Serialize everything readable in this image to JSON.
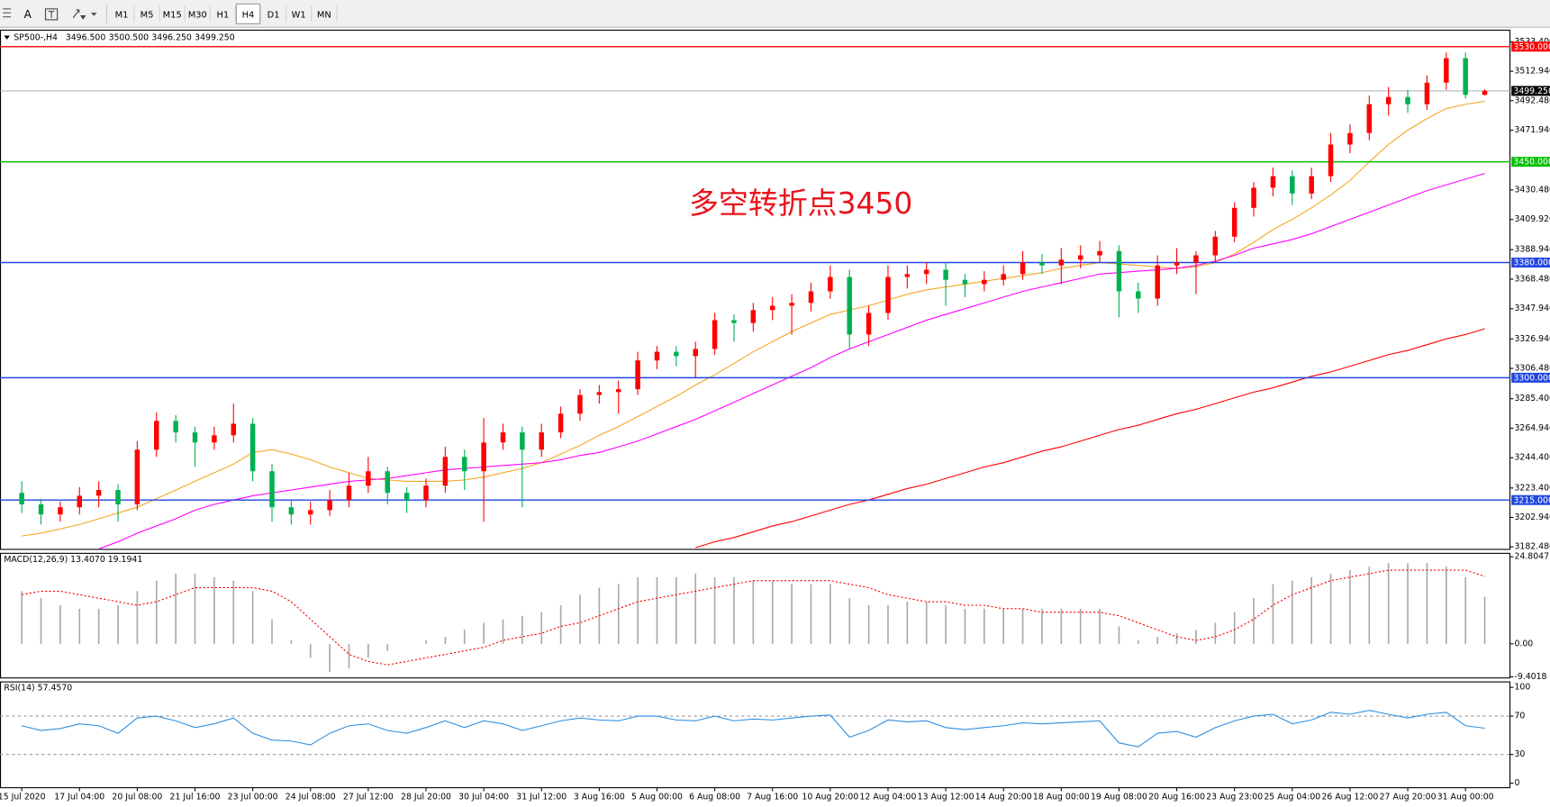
{
  "toolbar": {
    "text_tool": "A",
    "timeframes": [
      "M1",
      "M5",
      "M15",
      "M30",
      "H1",
      "H4",
      "D1",
      "W1",
      "MN"
    ],
    "active_timeframe": "H4"
  },
  "chart_data": [
    {
      "type": "candlestick",
      "title": "SP500-,H4",
      "ohlc_labels": [
        "3496.500",
        "3500.500",
        "3496.250",
        "3499.250"
      ],
      "annotation": "多空转折点3450",
      "categories": [
        "15 Jul 2020",
        null,
        null,
        "17 Jul 04:00",
        null,
        null,
        "20 Jul 08:00",
        null,
        null,
        "21 Jul 16:00",
        null,
        null,
        "23 Jul 00:00",
        null,
        null,
        "24 Jul 08:00",
        null,
        null,
        "27 Jul 12:00",
        null,
        null,
        "28 Jul 20:00",
        null,
        null,
        "30 Jul 04:00",
        null,
        null,
        "31 Jul 12:00",
        null,
        null,
        "3 Aug 16:00",
        null,
        null,
        "5 Aug 00:00",
        null,
        null,
        "6 Aug 08:00",
        null,
        null,
        "7 Aug 16:00",
        null,
        null,
        "10 Aug 20:00",
        null,
        null,
        "12 Aug 04:00",
        null,
        null,
        "13 Aug 12:00",
        null,
        null,
        "14 Aug 20:00",
        null,
        null,
        "18 Aug 00:00",
        null,
        null,
        "19 Aug 08:00",
        null,
        null,
        "20 Aug 16:00",
        null,
        null,
        "23 Aug 23:00",
        null,
        null,
        "25 Aug 04:00",
        null,
        null,
        "26 Aug 12:00",
        null,
        null,
        "27 Aug 20:00",
        null,
        null,
        "31 Aug 00:00",
        null
      ],
      "open": [
        3220,
        3212,
        3205,
        3210,
        3218,
        3222,
        3212,
        3250,
        3270,
        3262,
        3255,
        3260,
        3268,
        3235,
        3210,
        3205,
        3208,
        3215,
        3225,
        3235,
        3220,
        3215,
        3225,
        3245,
        3235,
        3255,
        3262,
        3250,
        3262,
        3275,
        3288,
        3290,
        3292,
        3312,
        3318,
        3315,
        3320,
        3340,
        3338,
        3347,
        3350,
        3352,
        3360,
        3370,
        3330,
        3345,
        3370,
        3372,
        3375,
        3368,
        3365,
        3368,
        3372,
        3380,
        3378,
        3382,
        3385,
        3388,
        3360,
        3355,
        3378,
        3380,
        3385,
        3398,
        3418,
        3432,
        3440,
        3428,
        3440,
        3462,
        3470,
        3490,
        3495,
        3490,
        3505,
        3522,
        3496.5
      ],
      "high": [
        3228,
        3216,
        3214,
        3224,
        3228,
        3226,
        3256,
        3276,
        3274,
        3266,
        3266,
        3282,
        3272,
        3240,
        3215,
        3214,
        3222,
        3234,
        3245,
        3238,
        3224,
        3230,
        3252,
        3250,
        3272,
        3268,
        3266,
        3268,
        3280,
        3292,
        3295,
        3298,
        3318,
        3322,
        3322,
        3325,
        3345,
        3344,
        3352,
        3356,
        3358,
        3366,
        3378,
        3375,
        3350,
        3378,
        3378,
        3380,
        3380,
        3372,
        3374,
        3378,
        3388,
        3386,
        3390,
        3392,
        3395,
        3392,
        3366,
        3385,
        3390,
        3388,
        3402,
        3422,
        3436,
        3446,
        3444,
        3446,
        3470,
        3476,
        3496,
        3502,
        3500,
        3510,
        3526,
        3526,
        3500.5
      ],
      "low": [
        3206,
        3198,
        3200,
        3205,
        3210,
        3200,
        3208,
        3245,
        3255,
        3238,
        3250,
        3255,
        3228,
        3200,
        3198,
        3198,
        3204,
        3210,
        3220,
        3212,
        3206,
        3210,
        3220,
        3222,
        3200,
        3250,
        3210,
        3245,
        3258,
        3270,
        3282,
        3275,
        3288,
        3306,
        3308,
        3300,
        3316,
        3325,
        3332,
        3340,
        3330,
        3346,
        3355,
        3320,
        3322,
        3340,
        3362,
        3365,
        3350,
        3356,
        3360,
        3364,
        3368,
        3372,
        3365,
        3376,
        3380,
        3342,
        3345,
        3350,
        3372,
        3358,
        3380,
        3394,
        3412,
        3426,
        3420,
        3424,
        3436,
        3456,
        3465,
        3482,
        3484,
        3486,
        3500,
        3494,
        3496.25
      ],
      "close": [
        3212,
        3205,
        3210,
        3218,
        3222,
        3212,
        3250,
        3270,
        3262,
        3255,
        3260,
        3268,
        3235,
        3210,
        3205,
        3208,
        3215,
        3225,
        3235,
        3220,
        3215,
        3225,
        3245,
        3235,
        3255,
        3262,
        3250,
        3262,
        3275,
        3288,
        3290,
        3292,
        3312,
        3318,
        3315,
        3320,
        3340,
        3338,
        3347,
        3350,
        3352,
        3360,
        3370,
        3330,
        3345,
        3370,
        3372,
        3375,
        3368,
        3365,
        3368,
        3372,
        3380,
        3378,
        3382,
        3385,
        3388,
        3360,
        3355,
        3378,
        3380,
        3385,
        3398,
        3418,
        3432,
        3440,
        3428,
        3440,
        3462,
        3470,
        3490,
        3495,
        3490,
        3505,
        3522,
        3496.5,
        3499.25
      ],
      "up_color": "#ff0000",
      "down_color": "#00b050",
      "lines": [
        {
          "color": "#f5a623",
          "values": [
            3190,
            3192,
            3195,
            3198,
            3202,
            3206,
            3210,
            3216,
            3222,
            3228,
            3234,
            3240,
            3248,
            3250,
            3247,
            3243,
            3238,
            3234,
            3230,
            3229,
            3228,
            3228,
            3228,
            3229,
            3231,
            3234,
            3237,
            3241,
            3247,
            3253,
            3260,
            3266,
            3273,
            3280,
            3287,
            3295,
            3302,
            3310,
            3318,
            3325,
            3332,
            3338,
            3344,
            3347,
            3350,
            3354,
            3358,
            3361,
            3363,
            3365,
            3367,
            3369,
            3371,
            3373,
            3376,
            3378,
            3380,
            3379,
            3378,
            3377,
            3376,
            3377,
            3380,
            3386,
            3394,
            3403,
            3410,
            3418,
            3427,
            3437,
            3450,
            3462,
            3472,
            3480,
            3487,
            3490,
            3492
          ]
        },
        {
          "color": "#ff00ff",
          "values": [
            null,
            null,
            null,
            null,
            3181,
            3186,
            3192,
            3197,
            3202,
            3208,
            3212,
            3215,
            3218,
            3220,
            3222,
            3224,
            3226,
            3228,
            3229,
            3230,
            3232,
            3234,
            3236,
            3237,
            3238,
            3239,
            3240,
            3241,
            3243,
            3246,
            3248,
            3252,
            3256,
            3261,
            3266,
            3271,
            3277,
            3283,
            3289,
            3295,
            3301,
            3307,
            3314,
            3320,
            3325,
            3330,
            3335,
            3340,
            3344,
            3348,
            3352,
            3356,
            3360,
            3363,
            3366,
            3369,
            3372,
            3373,
            3374,
            3375,
            3376,
            3378,
            3381,
            3385,
            3390,
            3393,
            3396,
            3400,
            3405,
            3410,
            3415,
            3420,
            3425,
            3430,
            3434,
            3438,
            3442
          ]
        },
        {
          "color": "#ff0000",
          "values": [
            null,
            null,
            null,
            null,
            null,
            null,
            null,
            null,
            null,
            null,
            null,
            null,
            null,
            null,
            null,
            null,
            null,
            null,
            null,
            null,
            null,
            null,
            null,
            null,
            null,
            null,
            null,
            null,
            null,
            null,
            null,
            null,
            null,
            null,
            null,
            3182,
            3186,
            3189,
            3193,
            3197,
            3200,
            3204,
            3208,
            3212,
            3215,
            3219,
            3223,
            3226,
            3230,
            3234,
            3238,
            3241,
            3245,
            3249,
            3252,
            3256,
            3260,
            3264,
            3267,
            3271,
            3275,
            3278,
            3282,
            3286,
            3290,
            3293,
            3297,
            3301,
            3304,
            3308,
            3312,
            3316,
            3319,
            3323,
            3327,
            3330,
            3334
          ]
        }
      ],
      "levels": [
        {
          "value": 3530,
          "label": "3530.000",
          "color": "#ff0000"
        },
        {
          "value": 3499.25,
          "label": "3499.250",
          "color": "#9aa4ae",
          "label_color": "#000000"
        },
        {
          "value": 3450,
          "label": "3450.000",
          "color": "#00c000"
        },
        {
          "value": 3380,
          "label": "3380.000",
          "color": "#2046e0"
        },
        {
          "value": 3300,
          "label": "3300.000",
          "color": "#2046e0"
        },
        {
          "value": 3215,
          "label": "3215.000",
          "color": "#2046e0"
        }
      ],
      "ylim": [
        3180.4,
        3541.8
      ],
      "yticks": [
        {
          "value": 3533.4,
          "label": "3533.400"
        },
        {
          "value": 3512.94,
          "label": "3512.940"
        },
        {
          "value": 3492.48,
          "label": "3492.480"
        },
        {
          "value": 3471.94,
          "label": "3471.940"
        },
        {
          "value": 3430.48,
          "label": "3430.480"
        },
        {
          "value": 3409.92,
          "label": "3409.920"
        },
        {
          "value": 3388.94,
          "label": "3388.940"
        },
        {
          "value": 3368.48,
          "label": "3368.480"
        },
        {
          "value": 3347.94,
          "label": "3347.940"
        },
        {
          "value": 3326.94,
          "label": "3326.940"
        },
        {
          "value": 3306.48,
          "label": "3306.480"
        },
        {
          "value": 3285.4,
          "label": "3285.400"
        },
        {
          "value": 3264.94,
          "label": "3264.940"
        },
        {
          "value": 3244.4,
          "label": "3244.400"
        },
        {
          "value": 3223.4,
          "label": "3223.400"
        },
        {
          "value": 3202.94,
          "label": "3202.940"
        },
        {
          "value": 3182.48,
          "label": "3182.480"
        }
      ]
    },
    {
      "type": "macd",
      "title": "MACD(12,26,9) 13.4070 19.1941",
      "histogram": [
        15,
        13,
        11,
        10,
        10,
        11,
        15,
        18,
        20,
        20,
        19,
        18,
        15,
        7,
        1,
        -4,
        -8,
        -7,
        -4,
        -2,
        0,
        1,
        2,
        4,
        6,
        7,
        8,
        9,
        11,
        14,
        16,
        17,
        19,
        19,
        19,
        20,
        19,
        19,
        18,
        18,
        17,
        17,
        17,
        13,
        11,
        11,
        12,
        12,
        11,
        10,
        10,
        10,
        10,
        10,
        10,
        10,
        10,
        5,
        1,
        2,
        3,
        4,
        6,
        9,
        13,
        17,
        18,
        19,
        20,
        21,
        22,
        23,
        23,
        23,
        22,
        19,
        13.4
      ],
      "signal": [
        14,
        15,
        15,
        14,
        13,
        12,
        11,
        12,
        14,
        16,
        16,
        16,
        16,
        15,
        12,
        7,
        2,
        -3,
        -5,
        -6,
        -5,
        -4,
        -3,
        -2,
        -1,
        1,
        2,
        3,
        5,
        6,
        8,
        10,
        12,
        13,
        14,
        15,
        16,
        17,
        18,
        18,
        18,
        18,
        18,
        17,
        16,
        14,
        13,
        12,
        12,
        11,
        11,
        10,
        10,
        9,
        9,
        9,
        9,
        8,
        6,
        4,
        2,
        1,
        2,
        4,
        7,
        11,
        14,
        16,
        18,
        19,
        20,
        21,
        21,
        21,
        21,
        21,
        19.2
      ],
      "histogram_color": "#a9a9a9",
      "signal_color": "#ff0000",
      "ylim": [
        -9.86,
        25.93
      ],
      "yticks": [
        24.8047,
        {
          "value": 0,
          "label": "0.00"
        },
        -9.4018
      ]
    },
    {
      "type": "line",
      "title": "RSI(14) 57.4570",
      "values": [
        60,
        55,
        57,
        62,
        60,
        52,
        68,
        70,
        65,
        58,
        62,
        68,
        52,
        45,
        44,
        40,
        52,
        60,
        62,
        55,
        52,
        58,
        65,
        58,
        65,
        62,
        55,
        60,
        65,
        68,
        66,
        65,
        70,
        70,
        66,
        65,
        70,
        65,
        67,
        66,
        68,
        70,
        71,
        48,
        55,
        66,
        64,
        65,
        58,
        56,
        58,
        60,
        63,
        62,
        63,
        64,
        65,
        42,
        38,
        52,
        54,
        48,
        58,
        65,
        70,
        72,
        62,
        66,
        74,
        72,
        76,
        72,
        68,
        72,
        74,
        60,
        57.457
      ],
      "color": "#2f8fe0",
      "levels": [
        70,
        30
      ],
      "ylim": [
        -5.2,
        106.2
      ],
      "yticks": [
        100,
        70,
        30,
        0
      ]
    }
  ]
}
